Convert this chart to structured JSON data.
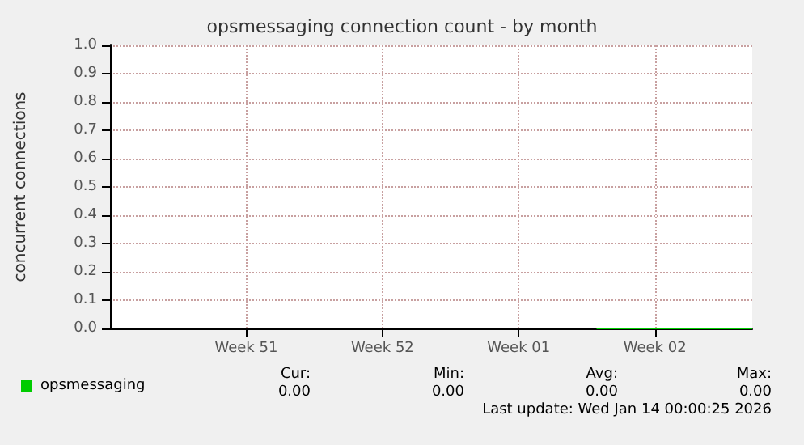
{
  "chart_data": {
    "type": "line",
    "title": "opsmessaging connection count - by month",
    "ylabel": "concurrent connections",
    "categories": [
      null,
      null,
      null,
      null,
      null,
      null,
      null,
      "Week 51",
      null,
      null,
      null,
      null,
      null,
      null,
      "Week 52",
      null,
      null,
      null,
      null,
      null,
      null,
      "Week 01",
      null,
      null,
      null,
      null,
      null,
      null,
      "Week 02",
      null,
      null,
      null,
      null,
      null
    ],
    "series": [
      {
        "name": "opsmessaging",
        "color": "#00cc00",
        "values": [
          null,
          null,
          null,
          null,
          null,
          null,
          null,
          null,
          null,
          null,
          null,
          null,
          null,
          null,
          null,
          null,
          null,
          null,
          null,
          null,
          null,
          null,
          null,
          null,
          null,
          0,
          0,
          0,
          0,
          0,
          0,
          0,
          0,
          0
        ]
      }
    ],
    "ylim": [
      0,
      1
    ],
    "yticks": [
      {
        "value": 0,
        "label": "0.0"
      },
      {
        "value": 0.1,
        "label": "0.1"
      },
      {
        "value": 0.2,
        "label": "0.2"
      },
      {
        "value": 0.3,
        "label": "0.3"
      },
      {
        "value": 0.4,
        "label": "0.4"
      },
      {
        "value": 0.5,
        "label": "0.5"
      },
      {
        "value": 0.6,
        "label": "0.6"
      },
      {
        "value": 0.7,
        "label": "0.7"
      },
      {
        "value": 0.8,
        "label": "0.8"
      },
      {
        "value": 0.9,
        "label": "0.9"
      },
      {
        "value": 1,
        "label": "1.0"
      }
    ],
    "grid": true,
    "legend": "bottom left",
    "marker": "none",
    "line_style": "solid",
    "annotations": [
      "Cur:",
      "Min:",
      "Avg:",
      "Max:",
      "0.00",
      "0.00",
      "0.00",
      "0.00",
      "Last update: Wed Jan 14 00:00:25 2026"
    ]
  }
}
